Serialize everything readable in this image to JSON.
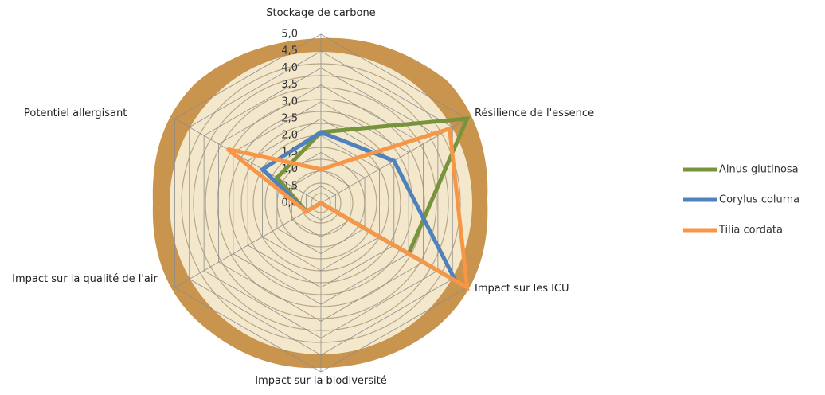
{
  "chart_data": {
    "type": "radar",
    "categories": [
      "Stockage de carbone",
      "Résilience de l'essence",
      "Impact sur les ICU",
      "Impact sur la biodiversité",
      "Impact sur la qualité de l'air",
      "Potentiel allergisant"
    ],
    "series": [
      {
        "name": "Alnus glutinosa",
        "color": "#77933c",
        "values": [
          2.1,
          5.0,
          3.0,
          0.0,
          0.5,
          1.5
        ]
      },
      {
        "name": "Corylus colurna",
        "color": "#4f81bd",
        "values": [
          2.1,
          2.5,
          4.6,
          0.0,
          0.5,
          2.0
        ]
      },
      {
        "name": "Tilia cordata",
        "color": "#f79646",
        "values": [
          1.0,
          4.4,
          5.0,
          0.0,
          0.5,
          3.2
        ]
      }
    ],
    "ylim": [
      0,
      5
    ],
    "yticks": [
      {
        "value": 0,
        "label": "0,0"
      },
      {
        "value": 0.5,
        "label": "0,5"
      },
      {
        "value": 1,
        "label": "1,0"
      },
      {
        "value": 1.5,
        "label": "1,5"
      },
      {
        "value": 2,
        "label": "2,0"
      },
      {
        "value": 2.5,
        "label": "2,5"
      },
      {
        "value": 3,
        "label": "3,0"
      },
      {
        "value": 3.5,
        "label": "3,5"
      },
      {
        "value": 4,
        "label": "4,0"
      },
      {
        "value": 4.5,
        "label": "4,5"
      },
      {
        "value": 5,
        "label": "5,0"
      }
    ],
    "grid": true,
    "legend": "right"
  }
}
